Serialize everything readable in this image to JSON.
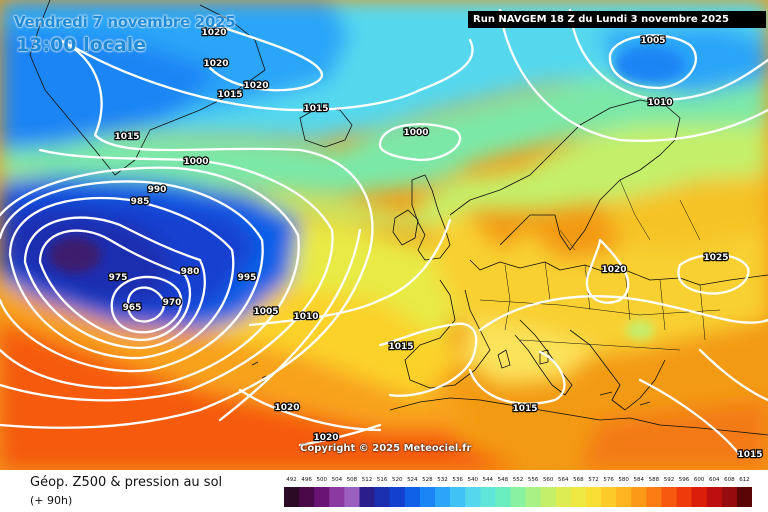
{
  "header": {
    "date_text": "Vendredi 7 novembre 2025",
    "time_text": "13:00 locale",
    "run_text": "Run NAVGEM 18 Z du Lundi 3 novembre 2025"
  },
  "copyright": "Copyright © 2025 Meteociel.fr",
  "footer": {
    "title": "Géop. Z500 & pression au sol",
    "subtitle": "(+ 90h)"
  },
  "legend": {
    "values": [
      "492",
      "496",
      "500",
      "504",
      "508",
      "512",
      "516",
      "520",
      "524",
      "528",
      "532",
      "536",
      "540",
      "544",
      "548",
      "552",
      "556",
      "560",
      "564",
      "568",
      "572",
      "576",
      "580",
      "584",
      "588",
      "592",
      "596",
      "600",
      "604",
      "608",
      "612"
    ],
    "colors": [
      "#2b0a25",
      "#4a0a4a",
      "#6a1575",
      "#8a3aa0",
      "#9b5fc0",
      "#2a1f8a",
      "#1a2fb0",
      "#1440d0",
      "#1060e8",
      "#1a85f5",
      "#2aa5f8",
      "#40c2f5",
      "#55d8ee",
      "#5fe6d8",
      "#6aeec0",
      "#88f2a0",
      "#a8f285",
      "#c4ef6a",
      "#dcec52",
      "#eee842",
      "#f8de35",
      "#fccb2a",
      "#fdb420",
      "#fc9a18",
      "#fb7c12",
      "#f75a0e",
      "#ef3a0c",
      "#db1e0c",
      "#bd0f0f",
      "#960b0b",
      "#5a0606"
    ]
  },
  "isobars": [
    {
      "value": "1020"
    },
    {
      "value": "1020"
    },
    {
      "value": "1020"
    },
    {
      "value": "1015"
    },
    {
      "value": "1015"
    },
    {
      "value": "1015"
    },
    {
      "value": "1000"
    },
    {
      "value": "1000"
    },
    {
      "value": "990"
    },
    {
      "value": "985"
    },
    {
      "value": "975"
    },
    {
      "value": "980"
    },
    {
      "value": "995"
    },
    {
      "value": "965"
    },
    {
      "value": "970"
    },
    {
      "value": "1005"
    },
    {
      "value": "1010"
    },
    {
      "value": "1015"
    },
    {
      "value": "1020"
    },
    {
      "value": "1020"
    },
    {
      "value": "1015"
    },
    {
      "value": "1020"
    },
    {
      "value": "1025"
    },
    {
      "value": "1005"
    },
    {
      "value": "1010"
    },
    {
      "value": "1015"
    }
  ]
}
